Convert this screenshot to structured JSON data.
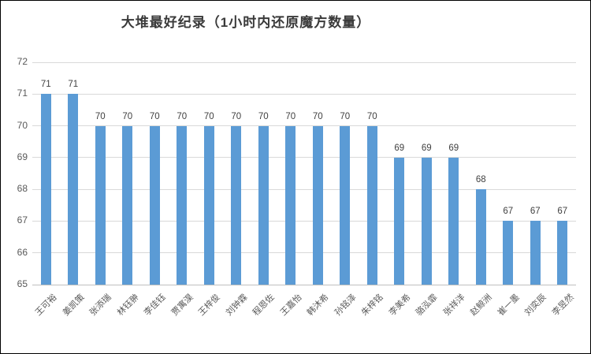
{
  "chart_data": {
    "type": "bar",
    "title": "大堆最好纪录（1小时内还原魔方数量）",
    "categories": [
      "王可裕",
      "姜凯策",
      "张添瑞",
      "林钰翀",
      "李佳钰",
      "贾寓淏",
      "王梓俊",
      "刘钟霖",
      "程恩佐",
      "王嘉怡",
      "韩沐希",
      "孙铭泽",
      "朱梓铭",
      "李美希",
      "骆泓霏",
      "张祥洋",
      "赵鲸洲",
      "崔一墨",
      "刘奕辰",
      "李昱然"
    ],
    "values": [
      71,
      71,
      70,
      70,
      70,
      70,
      70,
      70,
      70,
      70,
      70,
      70,
      70,
      69,
      69,
      69,
      68,
      67,
      67,
      67
    ],
    "xlabel": "",
    "ylabel": "",
    "ylim": [
      65,
      72
    ],
    "ytick_step": 1,
    "grid": true,
    "legend": "none",
    "data_labels": true,
    "colors": {
      "bar": "#5b9bd5",
      "gridline": "#d9d9d9",
      "axis_line": "#bfbfbf",
      "tick_text": "#595959",
      "value_text": "#404040",
      "title_text": "#3a3a3a",
      "frame_border": "#000000",
      "background": "#ffffff"
    }
  }
}
